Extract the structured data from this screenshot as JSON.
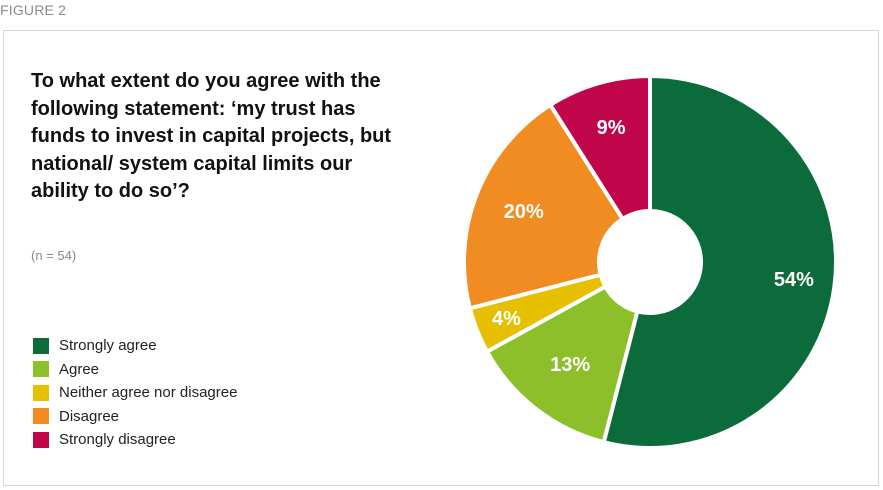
{
  "figure_label": "FIGURE 2",
  "colors": {
    "strongly_agree": "#0b6b3a",
    "agree": "#8dbf2a",
    "neither": "#e6c000",
    "disagree": "#f08c21",
    "strongly_disagree": "#c0054a",
    "separator": "#ffffff"
  },
  "chart_data": {
    "type": "pie",
    "title": "To what extent do you agree with the following statement: ‘my trust has funds to invest in capital projects, but national/ system capital limits our ability to do so’?",
    "subtitle": "(n = 54)",
    "donut": true,
    "start": "12 o'clock",
    "direction": "clockwise",
    "legend_position": "left",
    "categories": [
      "Strongly agree",
      "Agree",
      "Neither agree nor disagree",
      "Disagree",
      "Strongly disagree"
    ],
    "values": [
      54,
      13,
      4,
      20,
      9
    ],
    "labels": [
      "54%",
      "13%",
      "4%",
      "20%",
      "9%"
    ],
    "unit": "%"
  }
}
